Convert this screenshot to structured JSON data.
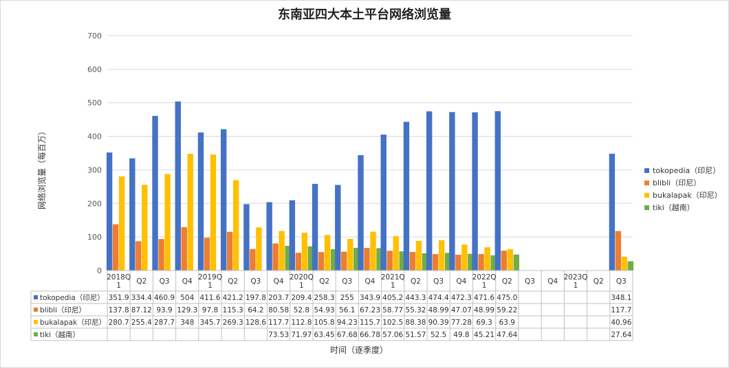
{
  "chart_data": {
    "type": "bar",
    "title": "东南亚四大本土平台网络浏览量",
    "xlabel": "时间（逐季度）",
    "ylabel": "网络浏览量（每百万）",
    "ylim": [
      0,
      700
    ],
    "yticks": [
      0,
      100,
      200,
      300,
      400,
      500,
      600,
      700
    ],
    "grid": true,
    "legend_position": "right",
    "categories": [
      [
        "2018Q",
        "1"
      ],
      [
        "Q2"
      ],
      [
        "Q3"
      ],
      [
        "Q4"
      ],
      [
        "2019Q",
        "1"
      ],
      [
        "Q2"
      ],
      [
        "Q3"
      ],
      [
        "Q4"
      ],
      [
        "2020Q",
        "1"
      ],
      [
        "Q2"
      ],
      [
        "Q3"
      ],
      [
        "Q4"
      ],
      [
        "2021Q",
        "1"
      ],
      [
        "Q2"
      ],
      [
        "Q3"
      ],
      [
        "Q4"
      ],
      [
        "2022Q",
        "1"
      ],
      [
        "Q2"
      ],
      [
        "Q3"
      ],
      [
        "Q4"
      ],
      [
        "2023Q",
        "1"
      ],
      [
        "Q2"
      ],
      [
        "Q3"
      ]
    ],
    "series": [
      {
        "name": "tokopedia（印尼）",
        "color": "#4472C4",
        "values": [
          351.9,
          334.4,
          460.9,
          504,
          411.6,
          421.2,
          197.8,
          203.7,
          209.4,
          258.3,
          255,
          343.9,
          405.2,
          443.3,
          474.4,
          472.3,
          471.6,
          475.0,
          null,
          null,
          null,
          null,
          348.1
        ],
        "labels": [
          "351.9",
          "334.4",
          "460.9",
          "504",
          "411.6",
          "421.2",
          "197.8",
          "203.7",
          "209.4",
          "258.3",
          "255",
          "343.9",
          "405.2",
          "443.3",
          "474.4",
          "472.3",
          "471.6",
          "475.0",
          "",
          "",
          "",
          "",
          "348.1"
        ]
      },
      {
        "name": "blibli（印尼）",
        "color": "#ED7D31",
        "values": [
          137.8,
          87.12,
          93.9,
          129.3,
          97.8,
          115.3,
          64.2,
          80.58,
          52.8,
          54.93,
          56.1,
          67.23,
          58.77,
          55.32,
          48.99,
          47.07,
          48.99,
          59.22,
          null,
          null,
          null,
          null,
          117.7
        ],
        "labels": [
          "137.8",
          "87.12",
          "93.9",
          "129.3",
          "97.8",
          "115.3",
          "64.2",
          "80.58",
          "52.8",
          "54.93",
          "56.1",
          "67.23",
          "58.77",
          "55.32",
          "48.99",
          "47.07",
          "48.99",
          "59.22",
          "",
          "",
          "",
          "",
          "117.7"
        ]
      },
      {
        "name": "bukalapak（印尼）",
        "color": "#FFC000",
        "values": [
          280.7,
          255.4,
          287.7,
          348,
          345.7,
          269.3,
          128.6,
          117.7,
          112.8,
          105.8,
          94.23,
          115.7,
          102.5,
          88.38,
          90.39,
          77.28,
          69.3,
          63.9,
          null,
          null,
          null,
          null,
          40.96
        ],
        "labels": [
          "280.7",
          "255.4",
          "287.7",
          "348",
          "345.7",
          "269.3",
          "128.6",
          "117.7",
          "112.8",
          "105.8",
          "94.23",
          "115.7",
          "102.5",
          "88.38",
          "90.39",
          "77.28",
          "69.3",
          "63.9",
          "",
          "",
          "",
          "",
          "40.96"
        ]
      },
      {
        "name": "tiki（越南）",
        "color": "#70AD47",
        "values": [
          null,
          null,
          null,
          null,
          null,
          null,
          null,
          73.53,
          71.97,
          63.45,
          67.68,
          66.78,
          57.06,
          51.57,
          52.5,
          49.8,
          45.21,
          47.64,
          null,
          null,
          null,
          null,
          27.64
        ],
        "labels": [
          "",
          "",
          "",
          "",
          "",
          "",
          "",
          "73.53",
          "71.97",
          "63.45",
          "67.68",
          "66.78",
          "57.06",
          "51.57",
          "52.5",
          "49.8",
          "45.21",
          "47.64",
          "",
          "",
          "",
          "",
          "27.64"
        ]
      }
    ]
  }
}
